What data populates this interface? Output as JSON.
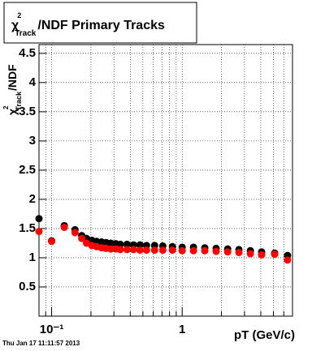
{
  "chart_data": {
    "type": "scatter",
    "title": {
      "symbol": "χ",
      "sup": "2",
      "sub": "Track",
      "rest": "/NDF  Primary Tracks"
    },
    "ylabel": {
      "symbol": "χ",
      "sup": "2",
      "sub": "Track",
      "rest": "/NDF"
    },
    "xlabel": "pT (GeV/c)",
    "timestamp": "Thu Jan 17 11:11:57 2013",
    "xlog": true,
    "grid": true,
    "xlim": [
      0.08,
      7
    ],
    "ylim": [
      0,
      4.65
    ],
    "xticks": [
      {
        "value": 0.1,
        "label": "10⁻¹"
      },
      1
    ],
    "yticks": [
      0.5,
      1,
      1.5,
      2,
      2.5,
      3,
      3.5,
      4,
      4.5
    ],
    "x": [
      0.08,
      0.1,
      0.125,
      0.151,
      0.17,
      0.185,
      0.203,
      0.221,
      0.241,
      0.261,
      0.284,
      0.31,
      0.336,
      0.378,
      0.424,
      0.475,
      0.533,
      0.615,
      0.71,
      0.842,
      1.0,
      1.22,
      1.49,
      1.82,
      2.23,
      2.72,
      3.33,
      4.06,
      5.11,
      6.41
    ],
    "series": [
      {
        "color": "#000000",
        "values": [
          1.67,
          1.29,
          1.55,
          1.48,
          1.38,
          1.33,
          1.3,
          1.28,
          1.27,
          1.26,
          1.25,
          1.24,
          1.23,
          1.23,
          1.22,
          1.22,
          1.21,
          1.21,
          1.2,
          1.19,
          1.18,
          1.18,
          1.17,
          1.16,
          1.15,
          1.14,
          1.12,
          1.1,
          1.08,
          1.04
        ]
      },
      {
        "color": "#ff0000",
        "values": [
          1.45,
          1.28,
          1.52,
          1.43,
          1.33,
          1.25,
          1.21,
          1.19,
          1.17,
          1.16,
          1.15,
          1.15,
          1.14,
          1.14,
          1.14,
          1.13,
          1.13,
          1.13,
          1.13,
          1.13,
          1.12,
          1.12,
          1.12,
          1.11,
          1.1,
          1.09,
          1.07,
          1.05,
          1.06,
          0.96
        ]
      }
    ]
  }
}
